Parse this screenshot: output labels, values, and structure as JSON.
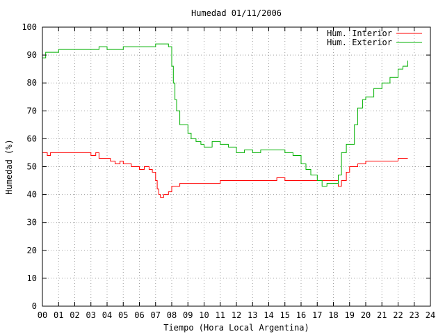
{
  "chart_data": {
    "type": "line",
    "title": "Humedad 01/11/2006",
    "xlabel": "Tiempo (Hora Local Argentina)",
    "ylabel": "Humedad (%)",
    "xlim": [
      0,
      24
    ],
    "ylim": [
      0,
      100
    ],
    "grid": true,
    "legend_position": "top-right",
    "x_ticks": [
      "00",
      "01",
      "02",
      "03",
      "04",
      "05",
      "06",
      "07",
      "08",
      "09",
      "10",
      "11",
      "12",
      "13",
      "14",
      "15",
      "16",
      "17",
      "18",
      "19",
      "20",
      "21",
      "22",
      "23",
      "24"
    ],
    "y_ticks": [
      "0",
      "10",
      "20",
      "30",
      "40",
      "50",
      "60",
      "70",
      "80",
      "90",
      "100"
    ],
    "series": [
      {
        "name": "Hum. Interior",
        "color": "#ff0000",
        "x": [
          0,
          0.15,
          0.3,
          0.5,
          1.0,
          1.5,
          2.0,
          2.5,
          3.0,
          3.3,
          3.5,
          4.0,
          4.2,
          4.5,
          4.8,
          5.0,
          5.5,
          5.8,
          6.0,
          6.3,
          6.6,
          6.8,
          7.0,
          7.1,
          7.2,
          7.3,
          7.5,
          7.8,
          8.0,
          8.5,
          9.0,
          10.0,
          11.0,
          12.0,
          13.0,
          14.0,
          14.5,
          15.0,
          16.0,
          17.0,
          18.0,
          18.3,
          18.5,
          18.8,
          19.0,
          19.5,
          20.0,
          20.5,
          21.0,
          21.5,
          22.0,
          22.3,
          22.6
        ],
        "y": [
          55,
          55,
          54,
          55,
          55,
          55,
          55,
          55,
          54,
          55,
          53,
          53,
          52,
          51,
          52,
          51,
          50,
          50,
          49,
          50,
          49,
          48,
          45,
          42,
          40,
          39,
          40,
          41,
          43,
          44,
          44,
          44,
          45,
          45,
          45,
          45,
          46,
          45,
          45,
          45,
          45,
          43,
          45,
          48,
          50,
          51,
          52,
          52,
          52,
          52,
          53,
          53,
          53
        ]
      },
      {
        "name": "Hum. Exterior",
        "color": "#00b000",
        "x": [
          0,
          0.2,
          0.5,
          1.0,
          1.5,
          2.0,
          2.5,
          3.0,
          3.5,
          4.0,
          5.0,
          6.0,
          7.0,
          7.5,
          7.8,
          8.0,
          8.1,
          8.2,
          8.3,
          8.5,
          8.7,
          9.0,
          9.2,
          9.5,
          9.8,
          10.0,
          10.5,
          11.0,
          11.5,
          12.0,
          12.5,
          13.0,
          13.5,
          14.0,
          14.5,
          15.0,
          15.5,
          16.0,
          16.3,
          16.6,
          17.0,
          17.3,
          17.6,
          18.0,
          18.3,
          18.5,
          18.8,
          19.0,
          19.3,
          19.5,
          19.8,
          20.0,
          20.5,
          21.0,
          21.5,
          22.0,
          22.3,
          22.6
        ],
        "y": [
          89,
          91,
          91,
          92,
          92,
          92,
          92,
          92,
          93,
          92,
          93,
          93,
          94,
          94,
          93,
          86,
          80,
          74,
          70,
          65,
          65,
          62,
          60,
          59,
          58,
          57,
          59,
          58,
          57,
          55,
          56,
          55,
          56,
          56,
          56,
          55,
          54,
          51,
          49,
          47,
          45,
          43,
          44,
          44,
          47,
          55,
          58,
          58,
          65,
          71,
          74,
          75,
          78,
          80,
          82,
          85,
          86,
          88
        ]
      }
    ]
  }
}
